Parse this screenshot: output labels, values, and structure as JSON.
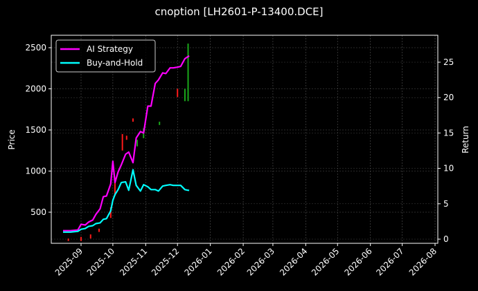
{
  "title": "cnoption [LH2601-P-13400.DCE]",
  "chart_data": {
    "type": "line",
    "title": "cnoption [LH2601-P-13400.DCE]",
    "xlabel": "",
    "ylabel": "Price",
    "y2label": "Return",
    "ylim": [
      130,
      2640
    ],
    "y2lim": [
      -0.3,
      28.7
    ],
    "grid": true,
    "legend_position": "upper left",
    "x_ticks": [
      "2025-09",
      "2025-10",
      "2025-11",
      "2025-12",
      "2026-01",
      "2026-02",
      "2026-03",
      "2026-04",
      "2026-05",
      "2026-06",
      "2026-07",
      "2026-08"
    ],
    "y_ticks": [
      500,
      1000,
      1500,
      2000,
      2500
    ],
    "y2_ticks": [
      0,
      5,
      10,
      15,
      20,
      25
    ],
    "series": [
      {
        "name": "AI Strategy",
        "axis": "return",
        "color": "#ff00ff",
        "x": [
          "2025-08-15",
          "2025-08-22",
          "2025-08-29",
          "2025-09-01",
          "2025-09-05",
          "2025-09-08",
          "2025-09-12",
          "2025-09-15",
          "2025-09-19",
          "2025-09-22",
          "2025-09-25",
          "2025-09-29",
          "2025-10-01",
          "2025-10-03",
          "2025-10-06",
          "2025-10-09",
          "2025-10-13",
          "2025-10-16",
          "2025-10-20",
          "2025-10-23",
          "2025-10-27",
          "2025-10-30",
          "2025-11-03",
          "2025-11-06",
          "2025-11-10",
          "2025-11-13",
          "2025-11-17",
          "2025-11-20",
          "2025-11-24",
          "2025-11-27",
          "2025-12-01",
          "2025-12-04",
          "2025-12-08",
          "2025-12-11",
          "2025-12-12"
        ],
        "values": [
          1.2,
          1.2,
          1.3,
          2.1,
          2.0,
          2.4,
          2.7,
          3.5,
          4.3,
          6.0,
          6.1,
          7.8,
          11.0,
          8.0,
          9.5,
          10.5,
          12.0,
          12.3,
          10.8,
          14.3,
          15.2,
          15.0,
          18.8,
          18.8,
          22.0,
          22.5,
          23.5,
          23.4,
          24.2,
          24.2,
          24.3,
          24.4,
          25.5,
          25.8,
          25.9
        ]
      },
      {
        "name": "Buy-and-Hold",
        "axis": "return",
        "color": "#00ffff",
        "x": [
          "2025-08-15",
          "2025-08-22",
          "2025-08-29",
          "2025-09-01",
          "2025-09-05",
          "2025-09-08",
          "2025-09-12",
          "2025-09-15",
          "2025-09-19",
          "2025-09-22",
          "2025-09-25",
          "2025-09-29",
          "2025-10-01",
          "2025-10-03",
          "2025-10-06",
          "2025-10-09",
          "2025-10-13",
          "2025-10-16",
          "2025-10-20",
          "2025-10-23",
          "2025-10-27",
          "2025-10-30",
          "2025-11-03",
          "2025-11-06",
          "2025-11-10",
          "2025-11-13",
          "2025-11-17",
          "2025-11-20",
          "2025-11-24",
          "2025-11-27",
          "2025-12-01",
          "2025-12-04",
          "2025-12-08",
          "2025-12-11",
          "2025-12-12"
        ],
        "values": [
          1.0,
          1.0,
          1.1,
          1.4,
          1.5,
          1.8,
          1.9,
          2.2,
          2.3,
          2.8,
          2.9,
          4.0,
          5.5,
          6.3,
          7.0,
          8.0,
          8.1,
          6.9,
          9.8,
          7.6,
          6.8,
          7.7,
          7.4,
          7.0,
          7.0,
          6.8,
          7.5,
          7.6,
          7.7,
          7.6,
          7.6,
          7.6,
          7.0,
          6.9,
          6.9
        ]
      }
    ],
    "candles_note": "Sparse red/green OHLC candlesticks on Price axis from ~2025-08 to 2025-12 (prices ~150 to ~2500)",
    "candles": [
      {
        "date": "2025-08-20",
        "open": 180,
        "close": 150,
        "color": "red"
      },
      {
        "date": "2025-09-01",
        "open": 200,
        "close": 150,
        "color": "red"
      },
      {
        "date": "2025-09-10",
        "open": 230,
        "close": 180,
        "color": "red"
      },
      {
        "date": "2025-09-18",
        "open": 300,
        "close": 260,
        "color": "red"
      },
      {
        "date": "2025-09-29",
        "open": 560,
        "close": 430,
        "color": "red"
      },
      {
        "date": "2025-10-03",
        "open": 700,
        "close": 920,
        "color": "red"
      },
      {
        "date": "2025-10-10",
        "open": 1250,
        "close": 1450,
        "color": "red"
      },
      {
        "date": "2025-10-14",
        "open": 1380,
        "close": 1430,
        "color": "red"
      },
      {
        "date": "2025-10-20",
        "open": 1600,
        "close": 1640,
        "color": "red"
      },
      {
        "date": "2025-10-24",
        "open": 1300,
        "close": 1380,
        "color": "green"
      },
      {
        "date": "2025-10-30",
        "open": 1400,
        "close": 1520,
        "color": "green"
      },
      {
        "date": "2025-11-14",
        "open": 1560,
        "close": 1600,
        "color": "green"
      },
      {
        "date": "2025-12-01",
        "open": 2000,
        "close": 1900,
        "color": "red"
      },
      {
        "date": "2025-12-08",
        "open": 1850,
        "close": 2000,
        "color": "green"
      },
      {
        "date": "2025-12-11",
        "open": 1850,
        "close": 2550,
        "color": "green"
      }
    ]
  }
}
